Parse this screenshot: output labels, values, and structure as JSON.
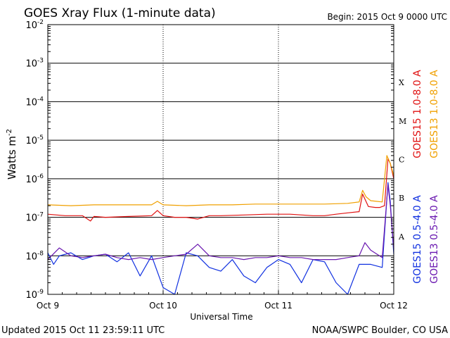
{
  "chart_data": {
    "type": "line",
    "title": "GOES Xray Flux (1-minute data)",
    "begin_text": "Begin:  2015 Oct 9 0000 UTC",
    "ylabel_text": "Watts m",
    "ylabel_exp": "-2",
    "xlabel": "Universal Time",
    "y_scale": "log",
    "ylim": [
      1e-09,
      0.01
    ],
    "y_ticks": [
      {
        "base": "10",
        "exp": "-2",
        "value": 0.01
      },
      {
        "base": "10",
        "exp": "-3",
        "value": 0.001
      },
      {
        "base": "10",
        "exp": "-4",
        "value": 0.0001
      },
      {
        "base": "10",
        "exp": "-5",
        "value": 1e-05
      },
      {
        "base": "10",
        "exp": "-6",
        "value": 1e-06
      },
      {
        "base": "10",
        "exp": "-7",
        "value": 1e-07
      },
      {
        "base": "10",
        "exp": "-8",
        "value": 1e-08
      },
      {
        "base": "10",
        "exp": "-9",
        "value": 1e-09
      }
    ],
    "x_ticks": [
      {
        "label": "Oct 9",
        "day": 0
      },
      {
        "label": "Oct 10",
        "day": 1
      },
      {
        "label": "Oct 11",
        "day": 2
      },
      {
        "label": "Oct 12",
        "day": 3
      }
    ],
    "xlim_days": [
      0,
      3
    ],
    "flare_classes": [
      {
        "label": "X",
        "value": 0.000316
      },
      {
        "label": "M",
        "value": 3.16e-05
      },
      {
        "label": "C",
        "value": 3.16e-06
      },
      {
        "label": "B",
        "value": 3.16e-07
      },
      {
        "label": "A",
        "value": 3.16e-08
      }
    ],
    "grid": true,
    "series": [
      {
        "name": "GOES15 1.0-8.0 A",
        "color": "#e01010",
        "x_days": [
          0.0,
          0.15,
          0.3,
          0.37,
          0.4,
          0.5,
          0.7,
          0.9,
          0.95,
          1.0,
          1.1,
          1.2,
          1.3,
          1.4,
          1.5,
          1.7,
          1.9,
          2.1,
          2.3,
          2.4,
          2.5,
          2.6,
          2.7,
          2.73,
          2.78,
          2.84,
          2.88,
          2.92,
          2.95,
          2.97,
          3.0
        ],
        "y": [
          1.2e-07,
          1.1e-07,
          1.1e-07,
          8e-08,
          1.05e-07,
          1e-07,
          1.05e-07,
          1.1e-07,
          1.5e-07,
          1.1e-07,
          1e-07,
          1e-07,
          9e-08,
          1.1e-07,
          1.1e-07,
          1.15e-07,
          1.2e-07,
          1.2e-07,
          1.1e-07,
          1.1e-07,
          1.2e-07,
          1.3e-07,
          1.4e-07,
          4e-07,
          1.9e-07,
          1.8e-07,
          1.8e-07,
          2e-07,
          3.3e-06,
          2.5e-06,
          1e-06
        ]
      },
      {
        "name": "GOES13 1.0-8.0 A",
        "color": "#f0a000",
        "x_days": [
          0.0,
          0.2,
          0.4,
          0.6,
          0.9,
          0.95,
          1.0,
          1.2,
          1.4,
          1.6,
          1.8,
          2.0,
          2.2,
          2.4,
          2.6,
          2.7,
          2.73,
          2.76,
          2.8,
          2.85,
          2.9,
          2.94,
          2.97,
          3.0
        ],
        "y": [
          2.1e-07,
          2e-07,
          2.1e-07,
          2.1e-07,
          2.1e-07,
          2.6e-07,
          2.1e-07,
          2e-07,
          2.1e-07,
          2.1e-07,
          2.2e-07,
          2.2e-07,
          2.2e-07,
          2.2e-07,
          2.3e-07,
          2.5e-07,
          5e-07,
          3.4e-07,
          2.7e-07,
          2.6e-07,
          2.5e-07,
          4e-06,
          2.5e-06,
          1.2e-06
        ]
      },
      {
        "name": "GOES15 0.5-4.0 A",
        "color": "#1030e0",
        "x_days": [
          0.0,
          0.05,
          0.1,
          0.2,
          0.3,
          0.4,
          0.5,
          0.6,
          0.7,
          0.8,
          0.9,
          1.0,
          1.1,
          1.2,
          1.3,
          1.4,
          1.5,
          1.6,
          1.7,
          1.8,
          1.9,
          2.0,
          2.1,
          2.2,
          2.3,
          2.4,
          2.5,
          2.6,
          2.7,
          2.8,
          2.9,
          2.95,
          2.97,
          3.0
        ],
        "y": [
          1.2e-08,
          6e-09,
          1e-08,
          1.2e-08,
          8e-09,
          1e-08,
          1.1e-08,
          7e-09,
          1.2e-08,
          3e-09,
          1e-08,
          1.5e-09,
          1e-09,
          1.2e-08,
          1e-08,
          5e-09,
          4e-09,
          8e-09,
          3e-09,
          2e-09,
          5e-09,
          8e-09,
          6e-09,
          2e-09,
          8e-09,
          7e-09,
          2e-09,
          1e-09,
          6e-09,
          6e-09,
          5e-09,
          8e-07,
          2.5e-07,
          1.1e-08
        ]
      },
      {
        "name": "GOES13 0.5-4.0 A",
        "color": "#6a18b0",
        "x_days": [
          0.0,
          0.1,
          0.2,
          0.3,
          0.4,
          0.5,
          0.6,
          0.7,
          0.8,
          0.9,
          1.0,
          1.1,
          1.2,
          1.3,
          1.4,
          1.5,
          1.6,
          1.7,
          1.8,
          1.9,
          2.0,
          2.1,
          2.2,
          2.3,
          2.4,
          2.5,
          2.6,
          2.7,
          2.75,
          2.8,
          2.9,
          2.95,
          2.97,
          3.0
        ],
        "y": [
          8e-09,
          1.6e-08,
          1e-08,
          9e-09,
          1e-08,
          1.1e-08,
          9e-09,
          8e-09,
          9e-09,
          8e-09,
          9e-09,
          1e-08,
          1.1e-08,
          2e-08,
          1e-08,
          9e-09,
          9e-09,
          8e-09,
          9e-09,
          9e-09,
          1e-08,
          9e-09,
          9e-09,
          8e-09,
          8e-09,
          8e-09,
          9e-09,
          1e-08,
          2.2e-08,
          1.4e-08,
          9e-09,
          7e-07,
          2e-07,
          1.5e-08
        ]
      }
    ],
    "footer_left": "Updated 2015 Oct 11 23:59:11 UTC",
    "footer_right": "NOAA/SWPC Boulder, CO USA"
  }
}
